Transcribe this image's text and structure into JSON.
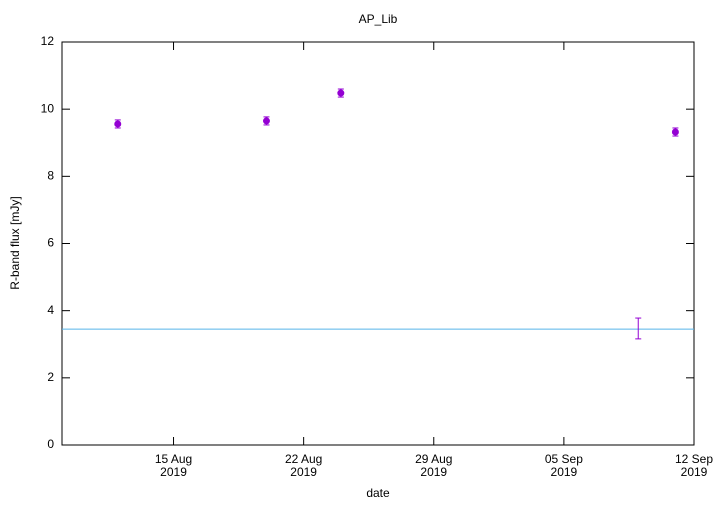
{
  "chart_data": {
    "type": "scatter",
    "title": "AP_Lib",
    "x_label": "date",
    "y_label": "R-band flux [mJy]",
    "xlim": [
      "2019-08-09",
      "2019-09-12"
    ],
    "xticks": [
      {
        "value": "2019-08-15",
        "label": [
          "15 Aug",
          "2019"
        ]
      },
      {
        "value": "2019-08-22",
        "label": [
          "22 Aug",
          "2019"
        ]
      },
      {
        "value": "2019-08-29",
        "label": [
          "29 Aug",
          "2019"
        ]
      },
      {
        "value": "2019-09-05",
        "label": [
          "05 Sep",
          "2019"
        ]
      },
      {
        "value": "2019-09-12",
        "label": [
          "12 Sep",
          "2019"
        ]
      }
    ],
    "ylim": [
      0,
      12
    ],
    "yticks": [
      0,
      2,
      4,
      6,
      8,
      10,
      12
    ],
    "hline": 3.45,
    "hline_color": "#56b4e9",
    "series": [
      {
        "color": "#9400d3",
        "marker": "circle",
        "x": [
          "2019-08-12",
          "2019-08-20",
          "2019-08-24",
          "2019-09-11"
        ],
        "values": [
          9.56,
          9.65,
          10.48,
          9.32
        ],
        "errors": [
          0.12,
          0.12,
          0.12,
          0.12
        ]
      },
      {
        "color": "#9400d3",
        "marker": "none",
        "x": [
          "2019-09-09"
        ],
        "values": [
          3.47
        ],
        "errors": [
          0.31
        ]
      }
    ]
  }
}
